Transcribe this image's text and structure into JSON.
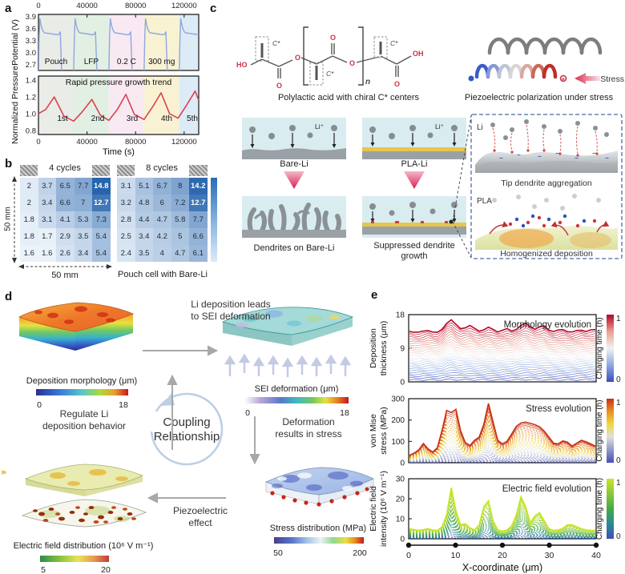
{
  "panels": {
    "a": "a",
    "b": "b",
    "c": "c",
    "d": "d",
    "e": "e"
  },
  "panel_a": {
    "ylabel_top": "Potential (V)",
    "ylabel_bottom": "Normalized Pressure",
    "xlabel": "Time (s)",
    "xticks": [
      "0",
      "40000",
      "80000",
      "120000"
    ],
    "yticks_top": [
      "3.9",
      "3.6",
      "3.3",
      "3.0",
      "2.7"
    ],
    "yticks_bottom": [
      "1.4",
      "1.2",
      "1.0",
      "0.8"
    ],
    "region_labels": [
      "Pouch",
      "LFP",
      "0.2 C",
      "300 mg"
    ],
    "band_colors": [
      "#e9ece7",
      "#e2efe3",
      "#f8e9f2",
      "#f8f2d3",
      "#dcebf6"
    ],
    "pressure_title": "Rapid pressure growth trend",
    "cycle_labels": [
      "1st",
      "2nd",
      "3rd",
      "4th",
      "5th"
    ]
  },
  "panel_b": {
    "title_left": "4 cycles",
    "title_right": "8 cycles",
    "side_label": "50 mm",
    "bottom_label": "50 mm",
    "caption": "Pouch cell with Bare-Li"
  },
  "panel_c": {
    "structure_caption": "Polylactic acid with chiral C* centers",
    "spring_caption": "Piezoelectric polarization under stress",
    "stress_label": "Stress",
    "ho_label": "HO",
    "oh_label": "OH",
    "o_label": "O",
    "n_label": "n",
    "chiral_label": "C*",
    "li_ion_label": "Li⁺",
    "bare_li_label": "Bare-Li",
    "pla_li_label": "PLA-Li",
    "dendrites_caption": "Dendrites on Bare-Li",
    "suppressed_caption_1": "Suppressed dendrite",
    "suppressed_caption_2": "growth",
    "inset": {
      "li_label": "Li",
      "pla_label": "PLA",
      "top_caption": "Tip dendrite aggregation",
      "bottom_caption": "Homogenized deposition"
    }
  },
  "panel_d": {
    "morph_label": "Deposition  morphology (μm)",
    "morph_tick_lo": "0",
    "morph_tick_hi": "18",
    "sei_label": "SEI deformation (μm)",
    "sei_tick_lo": "0",
    "sei_tick_hi": "18",
    "stress_label": "Stress distribution (MPa)",
    "stress_tick_lo": "50",
    "stress_tick_hi": "200",
    "efield_label": "Electric field distribution (10⁶ V m⁻¹)",
    "efield_tick_lo": "5",
    "efield_tick_hi": "20",
    "text_top_1": "Li deposition leads",
    "text_top_2": "to SEI deformation",
    "text_right_1": "Deformation",
    "text_right_2": "results in stress",
    "text_bottom_1": "Piezoelectric",
    "text_bottom_2": "effect",
    "text_left_1": "Regulate Li",
    "text_left_2": "deposition behavior",
    "center_1": "Coupling",
    "center_2": "Relationship"
  },
  "panel_e": {
    "colorbar_label": "Charging time (h)",
    "colorbar_tick_top": "1",
    "colorbar_tick_bottom": "0",
    "xlabel": "X-coordinate (μm)"
  },
  "chart_data": [
    {
      "id": "potential",
      "type": "line",
      "ylabel": "Potential (V)",
      "ylim": [
        2.55,
        3.95
      ],
      "yticks": [
        3.9,
        3.6,
        3.3,
        3.0,
        2.7
      ],
      "xlim": [
        0,
        132000
      ],
      "xticks": [
        0,
        40000,
        80000,
        120000
      ],
      "annotations": [
        "Pouch",
        "LFP",
        "0.2 C",
        "300 mg"
      ],
      "series_color": "#8fa7dd",
      "cycles": {
        "count": 5,
        "period_s": 29000,
        "spike_v": 3.85,
        "plateau_v": 3.44,
        "min_v": 2.5
      }
    },
    {
      "id": "pressure",
      "type": "line",
      "ylabel": "Normalized Pressure",
      "ylim": [
        0.75,
        1.45
      ],
      "yticks": [
        1.4,
        1.2,
        1.0,
        0.8
      ],
      "xlim": [
        0,
        132000
      ],
      "xticks": [
        0,
        40000,
        80000,
        120000
      ],
      "xlabel": "Time (s)",
      "title": "Rapid pressure growth trend",
      "series_color": "#d8444f",
      "points": [
        [
          0,
          1.0
        ],
        [
          6000,
          1.05
        ],
        [
          13000,
          1.2
        ],
        [
          21000,
          0.97
        ],
        [
          29000,
          0.91
        ],
        [
          36000,
          1.02
        ],
        [
          44000,
          1.17
        ],
        [
          51000,
          0.98
        ],
        [
          58000,
          0.92
        ],
        [
          65000,
          1.05
        ],
        [
          72000,
          1.23
        ],
        [
          79000,
          0.99
        ],
        [
          87000,
          0.93
        ],
        [
          94000,
          1.08
        ],
        [
          101000,
          1.25
        ],
        [
          108000,
          1.0
        ],
        [
          115000,
          0.945
        ],
        [
          122000,
          1.1
        ],
        [
          129000,
          1.27
        ],
        [
          132000,
          1.16
        ]
      ]
    },
    {
      "id": "heatmap-4cycles",
      "type": "heatmap",
      "title": "4 cycles",
      "value_range": [
        1.4,
        15
      ],
      "values": [
        [
          2,
          3.7,
          6.5,
          7.7,
          14.8
        ],
        [
          2,
          3.4,
          6.6,
          7,
          12.7
        ],
        [
          1.8,
          3.1,
          4.1,
          5.3,
          7.3
        ],
        [
          1.8,
          1.7,
          2.9,
          3.5,
          5.4
        ],
        [
          1.6,
          1.6,
          2.6,
          3.4,
          5.4
        ]
      ]
    },
    {
      "id": "heatmap-8cycles",
      "type": "heatmap",
      "title": "8 cycles",
      "value_range": [
        1.4,
        15
      ],
      "values": [
        [
          3.1,
          5.1,
          6.7,
          8,
          14.2
        ],
        [
          3.2,
          4.8,
          6,
          7.2,
          12.7
        ],
        [
          2.8,
          4.4,
          4.7,
          5.8,
          7.7
        ],
        [
          2.5,
          3.4,
          4.2,
          5,
          6.6
        ],
        [
          2.4,
          3.5,
          4,
          4.7,
          6.1
        ]
      ]
    },
    {
      "id": "morphology-evolution",
      "type": "line-family",
      "title": "Morphology evolution",
      "ylabel": [
        "Deposition",
        "thickness (μm)"
      ],
      "ylim": [
        0,
        18
      ],
      "yticks": [
        18,
        9,
        0
      ],
      "x_range": [
        0,
        40
      ],
      "n_lines": 26,
      "exp": 1.0,
      "wiggle": 0.18,
      "colormap": [
        "#3b4cc0",
        "#8fa8e0",
        "#f2f2f2",
        "#e8a090",
        "#b40426"
      ],
      "final_profile": [
        13.6,
        13.4,
        13.2,
        13.5,
        13.9,
        13.4,
        13.1,
        14.0,
        15.8,
        16.6,
        15.2,
        14.3,
        14.6,
        15.0,
        14.2,
        13.7,
        14.0,
        14.5,
        14.0,
        13.5,
        13.8,
        14.1,
        13.6,
        14.2,
        15.0,
        15.6,
        14.8,
        14.2,
        14.6,
        14.9,
        14.0,
        13.5,
        13.7,
        14.0,
        13.6,
        13.3,
        13.6,
        13.9,
        13.6,
        13.8,
        13.9
      ]
    },
    {
      "id": "stress-evolution",
      "type": "line-family",
      "title": "Stress evolution",
      "ylabel": [
        "von Mise",
        "stress (MPa)"
      ],
      "ylim": [
        0,
        300
      ],
      "yticks": [
        300,
        200,
        100,
        0
      ],
      "x_range": [
        0,
        40
      ],
      "n_lines": 30,
      "exp": 1.25,
      "wiggle": 0,
      "colormap": [
        "#4850b8",
        "#9098c8",
        "#e0e0dc",
        "#f0d840",
        "#e89020",
        "#c83018"
      ],
      "final_profile": [
        35,
        45,
        60,
        90,
        65,
        50,
        70,
        150,
        245,
        235,
        250,
        150,
        95,
        80,
        105,
        120,
        180,
        278,
        190,
        105,
        88,
        100,
        135,
        170,
        186,
        190,
        184,
        178,
        168,
        148,
        120,
        92,
        88,
        102,
        96,
        78,
        92,
        105,
        98,
        88,
        78
      ]
    },
    {
      "id": "efield-evolution",
      "type": "line-family",
      "title": "Electric field evolution",
      "ylabel": [
        "Electric field",
        "intensity (10⁶ V m⁻¹)"
      ],
      "ylim": [
        0,
        30
      ],
      "yticks": [
        30,
        20,
        10,
        0
      ],
      "x_range": [
        0,
        40
      ],
      "xticks": [
        0,
        10,
        20,
        30,
        40
      ],
      "xlabel": "X-coordinate (μm)",
      "n_lines": 26,
      "exp": 1.15,
      "wiggle": 0,
      "colormap": [
        "#4050b0",
        "#2e8898",
        "#42aa48",
        "#8cc63f",
        "#c6e622"
      ],
      "final_profile": [
        5,
        4.6,
        4.2,
        4.6,
        5,
        4.4,
        4.2,
        6,
        12,
        25.5,
        14,
        7,
        7.5,
        5.5,
        4.4,
        7,
        16,
        19,
        9,
        4.4,
        3.8,
        4.4,
        6.5,
        12,
        21,
        16,
        8,
        11.5,
        13,
        9,
        5,
        4.2,
        4.4,
        5.2,
        7,
        7,
        6,
        5,
        4.4,
        4.2,
        4.2
      ]
    }
  ]
}
